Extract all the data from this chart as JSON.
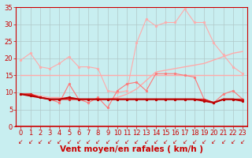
{
  "x": [
    0,
    1,
    2,
    3,
    4,
    5,
    6,
    7,
    8,
    9,
    10,
    11,
    12,
    13,
    14,
    15,
    16,
    17,
    18,
    19,
    20,
    21,
    22,
    23
  ],
  "series": [
    {
      "name": "rafales_light_peak",
      "color": "#ffaaaa",
      "linewidth": 0.8,
      "marker": "o",
      "markersize": 2.0,
      "values": [
        19.5,
        21.5,
        17.5,
        17.0,
        18.5,
        20.5,
        17.5,
        17.5,
        17.0,
        10.5,
        10.0,
        10.5,
        24.5,
        31.5,
        29.5,
        30.5,
        30.5,
        34.5,
        30.5,
        30.5,
        24.5,
        21.0,
        17.5,
        15.5
      ]
    },
    {
      "name": "moyen_trend_light",
      "color": "#ffaaaa",
      "linewidth": 1.0,
      "marker": null,
      "markersize": 0,
      "values": [
        9.5,
        9.5,
        9.0,
        8.5,
        8.5,
        8.0,
        8.0,
        8.0,
        8.0,
        8.0,
        8.5,
        9.5,
        11.0,
        13.5,
        16.0,
        16.5,
        17.0,
        17.5,
        18.0,
        18.5,
        19.5,
        20.5,
        21.5,
        22.0
      ]
    },
    {
      "name": "moyen_flat_light",
      "color": "#ffaaaa",
      "linewidth": 1.0,
      "marker": null,
      "markersize": 0,
      "values": [
        15.0,
        15.0,
        15.0,
        15.0,
        15.0,
        15.0,
        15.0,
        15.0,
        15.0,
        15.0,
        15.0,
        15.0,
        15.0,
        15.0,
        15.0,
        15.0,
        15.0,
        15.0,
        15.0,
        15.0,
        15.0,
        15.0,
        15.0,
        15.0
      ]
    },
    {
      "name": "rafales_medium",
      "color": "#ff7777",
      "linewidth": 0.8,
      "marker": "o",
      "markersize": 2.0,
      "values": [
        9.5,
        9.5,
        8.5,
        8.0,
        7.0,
        12.5,
        8.0,
        7.0,
        8.5,
        5.5,
        10.5,
        12.5,
        13.0,
        10.5,
        15.5,
        15.5,
        15.5,
        15.0,
        14.5,
        8.0,
        7.0,
        9.5,
        10.5,
        8.0
      ]
    },
    {
      "name": "moyen_dark1",
      "color": "#dd2222",
      "linewidth": 1.2,
      "marker": "o",
      "markersize": 2.0,
      "values": [
        9.5,
        9.5,
        8.5,
        8.0,
        8.0,
        8.0,
        8.0,
        8.0,
        8.0,
        8.0,
        8.0,
        8.0,
        8.0,
        8.0,
        8.0,
        8.0,
        8.0,
        8.0,
        8.0,
        8.0,
        7.0,
        8.0,
        8.0,
        8.0
      ]
    },
    {
      "name": "moyen_dark2",
      "color": "#bb0000",
      "linewidth": 1.5,
      "marker": "o",
      "markersize": 2.0,
      "values": [
        9.5,
        9.0,
        8.5,
        8.0,
        8.0,
        8.5,
        8.0,
        8.0,
        8.0,
        8.0,
        8.0,
        8.0,
        8.0,
        8.0,
        8.0,
        8.0,
        8.0,
        8.0,
        8.0,
        7.5,
        7.0,
        8.0,
        8.0,
        7.5
      ]
    }
  ],
  "xlabel": "Vent moyen/en rafales ( km/h )",
  "xlim_min": -0.5,
  "xlim_max": 23.5,
  "ylim_min": 0,
  "ylim_max": 35,
  "yticks": [
    0,
    5,
    10,
    15,
    20,
    25,
    30,
    35
  ],
  "xticks": [
    0,
    1,
    2,
    3,
    4,
    5,
    6,
    7,
    8,
    9,
    10,
    11,
    12,
    13,
    14,
    15,
    16,
    17,
    18,
    19,
    20,
    21,
    22,
    23
  ],
  "bg_color": "#c8eef0",
  "grid_color": "#b0c8c8",
  "xlabel_color": "#cc0000",
  "xlabel_fontsize": 7.5,
  "tick_color": "#cc0000",
  "tick_fontsize": 6,
  "arrow_color": "#cc0000",
  "spine_color": "#cc0000",
  "spine_bottom_color": "#cc0000",
  "figwidth": 3.2,
  "figheight": 2.0,
  "dpi": 100
}
